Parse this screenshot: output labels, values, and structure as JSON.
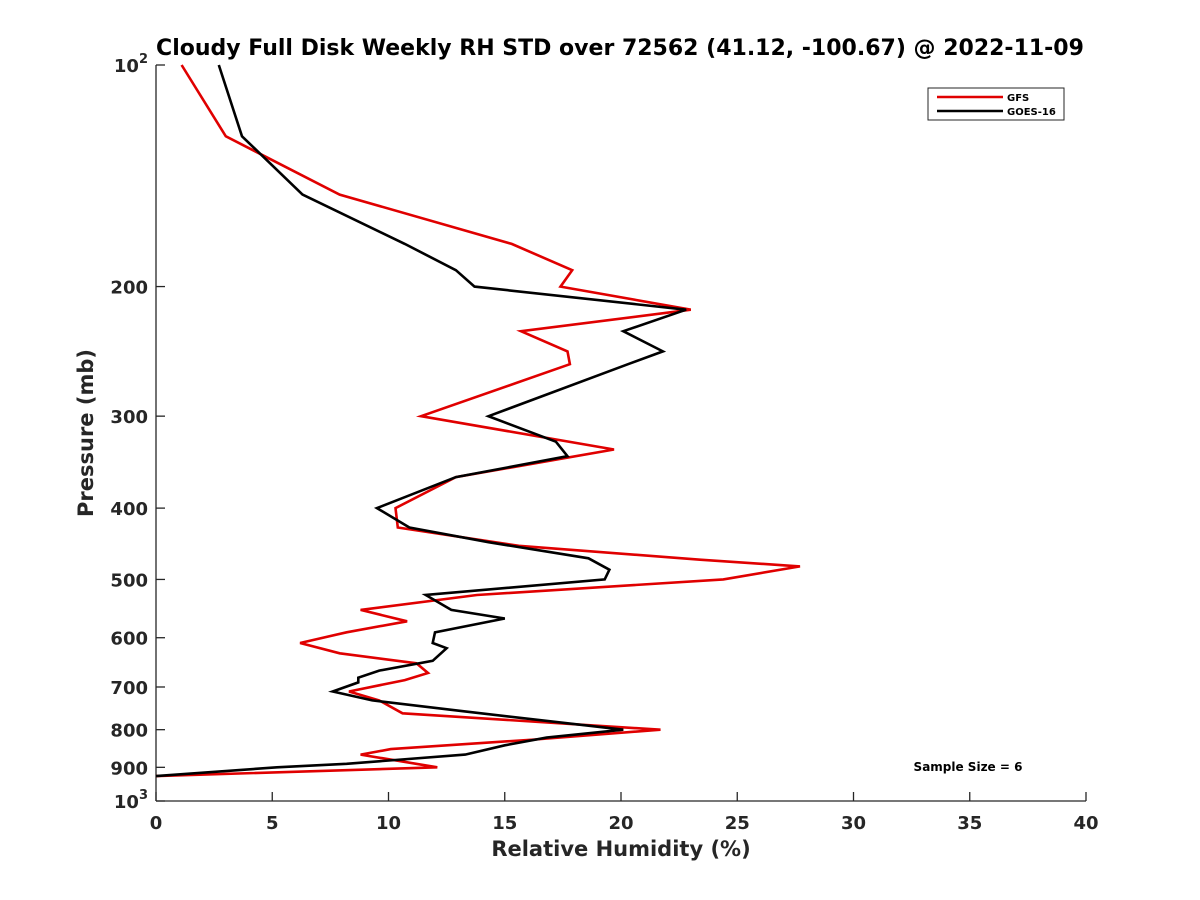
{
  "chart_data": {
    "type": "line",
    "title": "Cloudy Full Disk Weekly RH STD over 72562 (41.12, -100.67) @ 2022-11-09",
    "xlabel": "Relative Humidity (%)",
    "ylabel": "Pressure (mb)",
    "xlim": [
      0,
      40
    ],
    "ylim": [
      100,
      1000
    ],
    "y_scale": "log",
    "y_reversed": true,
    "grid": false,
    "legend_position": "top-right",
    "x_ticks": [
      {
        "value": 0,
        "label": "0"
      },
      {
        "value": 5,
        "label": "5"
      },
      {
        "value": 10,
        "label": "10"
      },
      {
        "value": 15,
        "label": "15"
      },
      {
        "value": 20,
        "label": "20"
      },
      {
        "value": 25,
        "label": "25"
      },
      {
        "value": 30,
        "label": "30"
      },
      {
        "value": 35,
        "label": "35"
      },
      {
        "value": 40,
        "label": "40"
      }
    ],
    "y_ticks": [
      {
        "value": 100,
        "base": "10",
        "exp": "2"
      },
      {
        "value": 200,
        "label": "200"
      },
      {
        "value": 300,
        "label": "300"
      },
      {
        "value": 400,
        "label": "400"
      },
      {
        "value": 500,
        "label": "500"
      },
      {
        "value": 600,
        "label": "600"
      },
      {
        "value": 700,
        "label": "700"
      },
      {
        "value": 800,
        "label": "800"
      },
      {
        "value": 900,
        "label": "900"
      },
      {
        "value": 1000,
        "base": "10",
        "exp": "3"
      }
    ],
    "annotation": "Sample Size = 6",
    "series": [
      {
        "name": "GFS",
        "color": "#e00000",
        "points": [
          [
            1.1,
            100
          ],
          [
            3.0,
            125
          ],
          [
            7.9,
            150
          ],
          [
            15.3,
            175
          ],
          [
            17.9,
            190
          ],
          [
            17.4,
            200
          ],
          [
            23.0,
            215
          ],
          [
            15.7,
            230
          ],
          [
            17.7,
            245
          ],
          [
            17.8,
            255
          ],
          [
            11.4,
            300
          ],
          [
            19.7,
            333
          ],
          [
            12.9,
            363
          ],
          [
            10.3,
            400
          ],
          [
            10.4,
            425
          ],
          [
            15.6,
            450
          ],
          [
            23.4,
            470
          ],
          [
            27.7,
            480
          ],
          [
            24.4,
            500
          ],
          [
            13.8,
            525
          ],
          [
            8.8,
            550
          ],
          [
            10.8,
            570
          ],
          [
            8.2,
            590
          ],
          [
            6.2,
            610
          ],
          [
            7.9,
            630
          ],
          [
            11.2,
            650
          ],
          [
            11.7,
            670
          ],
          [
            10.7,
            685
          ],
          [
            8.3,
            710
          ],
          [
            9.6,
            730
          ],
          [
            10.6,
            760
          ],
          [
            21.7,
            800
          ],
          [
            16.3,
            825
          ],
          [
            10.1,
            850
          ],
          [
            8.8,
            865
          ],
          [
            12.1,
            900
          ],
          [
            0.0,
            925
          ]
        ]
      },
      {
        "name": "GOES-16",
        "color": "#000000",
        "points": [
          [
            2.7,
            100
          ],
          [
            3.7,
            125
          ],
          [
            6.3,
            150
          ],
          [
            10.7,
            175
          ],
          [
            12.9,
            190
          ],
          [
            13.7,
            200
          ],
          [
            22.8,
            215
          ],
          [
            20.1,
            230
          ],
          [
            21.8,
            245
          ],
          [
            20.3,
            255
          ],
          [
            14.3,
            300
          ],
          [
            17.2,
            325
          ],
          [
            17.7,
            340
          ],
          [
            12.9,
            363
          ],
          [
            9.5,
            400
          ],
          [
            10.9,
            425
          ],
          [
            14.3,
            445
          ],
          [
            18.6,
            468
          ],
          [
            19.5,
            485
          ],
          [
            19.3,
            500
          ],
          [
            11.6,
            525
          ],
          [
            12.7,
            550
          ],
          [
            15.0,
            565
          ],
          [
            12.0,
            590
          ],
          [
            11.9,
            610
          ],
          [
            12.5,
            620
          ],
          [
            11.9,
            645
          ],
          [
            9.6,
            665
          ],
          [
            8.7,
            680
          ],
          [
            8.7,
            690
          ],
          [
            7.6,
            710
          ],
          [
            9.3,
            730
          ],
          [
            13.2,
            755
          ],
          [
            20.1,
            800
          ],
          [
            16.8,
            820
          ],
          [
            15.0,
            840
          ],
          [
            13.3,
            865
          ],
          [
            8.2,
            890
          ],
          [
            5.2,
            900
          ],
          [
            0.0,
            925
          ]
        ]
      }
    ]
  }
}
